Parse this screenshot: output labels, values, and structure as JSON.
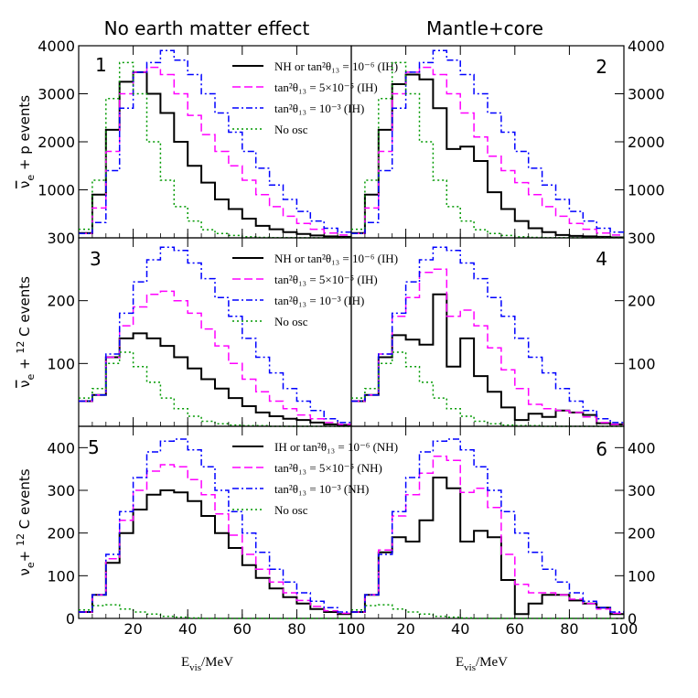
{
  "column_titles": [
    "No earth matter effect",
    "Mantle+core"
  ],
  "x_axis_label_main": "E",
  "x_axis_label_sub": "vis",
  "x_axis_label_unit": "/MeV",
  "row_y_labels": [
    {
      "prefix": "ν",
      "sub": "e",
      "rest": " + p events",
      "bar": true,
      "sup": ""
    },
    {
      "prefix": "ν",
      "sub": "e",
      "rest": " C events",
      "bar": true,
      "sup": "12",
      "plus": " + "
    },
    {
      "prefix": "ν",
      "sub": "e",
      "rest": " C events",
      "bar": false,
      "sup": "12",
      "plus": "+ "
    }
  ],
  "colors": {
    "black": "#000000",
    "magenta": "#ff00ff",
    "blue": "#0000ff",
    "green": "#009900"
  },
  "chart_data": [
    {
      "panel": 1,
      "type": "histogram",
      "xlim": [
        0,
        100
      ],
      "ylim": [
        0,
        4000
      ],
      "xticks": [
        20,
        40,
        60,
        80
      ],
      "yticks": [
        1000,
        2000,
        3000,
        4000
      ],
      "ytick_labels": [
        "1000",
        "2000",
        "3000",
        "4000"
      ],
      "bin_edges": [
        0,
        5,
        10,
        15,
        20,
        25,
        30,
        35,
        40,
        45,
        50,
        55,
        60,
        65,
        70,
        75,
        80,
        85,
        90,
        95,
        100
      ],
      "legend": [
        "NH or tan²θ₁₃ = 10⁻⁶ (IH)",
        "tan²θ₁₃ = 5×10⁻⁵ (IH)",
        "tan²θ₁₃ = 10⁻³ (IH)",
        "No osc"
      ],
      "series": [
        {
          "name": "NH or tan2theta13 = 1e-6 (IH)",
          "color": "black",
          "dash": "solid",
          "values": [
            100,
            900,
            2250,
            3250,
            3450,
            3000,
            2600,
            2000,
            1500,
            1150,
            800,
            600,
            400,
            250,
            180,
            120,
            80,
            50,
            30,
            20
          ]
        },
        {
          "name": "tan2theta13 = 5e-5 (IH)",
          "color": "magenta",
          "dash": "dashed",
          "values": [
            90,
            620,
            1800,
            3000,
            3450,
            3550,
            3400,
            3000,
            2550,
            2150,
            1800,
            1500,
            1200,
            900,
            650,
            450,
            300,
            180,
            100,
            60
          ]
        },
        {
          "name": "tan2theta13 = 1e-3 (IH)",
          "color": "blue",
          "dash": "dashdot",
          "values": [
            90,
            320,
            1400,
            2700,
            3450,
            3650,
            3900,
            3700,
            3400,
            3000,
            2600,
            2200,
            1800,
            1450,
            1100,
            800,
            550,
            350,
            200,
            120
          ]
        },
        {
          "name": "No osc",
          "color": "green",
          "dash": "dotted",
          "values": [
            180,
            1200,
            2900,
            3650,
            3000,
            2000,
            1200,
            650,
            350,
            170,
            90,
            50,
            20,
            10,
            5,
            3,
            2,
            1,
            1,
            1
          ]
        }
      ]
    },
    {
      "panel": 2,
      "type": "histogram",
      "xlim": [
        0,
        100
      ],
      "ylim": [
        0,
        4000
      ],
      "xticks": [
        20,
        40,
        60,
        80
      ],
      "yticks": [
        1000,
        2000,
        3000,
        4000
      ],
      "ytick_labels": [
        "1000",
        "2000",
        "3000",
        "4000"
      ],
      "bin_edges": [
        0,
        5,
        10,
        15,
        20,
        25,
        30,
        35,
        40,
        45,
        50,
        55,
        60,
        65,
        70,
        75,
        80,
        85,
        90,
        95,
        100
      ],
      "series": [
        {
          "name": "NH or tan2theta13 = 1e-6 (IH)",
          "color": "black",
          "dash": "solid",
          "values": [
            100,
            900,
            2250,
            3200,
            3400,
            3300,
            2700,
            1850,
            1900,
            1600,
            950,
            600,
            350,
            200,
            120,
            60,
            40,
            30,
            20,
            10
          ]
        },
        {
          "name": "tan2theta13 = 5e-5 (IH)",
          "color": "magenta",
          "dash": "dashed",
          "values": [
            90,
            620,
            1800,
            3000,
            3450,
            3550,
            3400,
            3000,
            2600,
            2100,
            1700,
            1400,
            1150,
            900,
            650,
            450,
            300,
            180,
            100,
            60
          ]
        },
        {
          "name": "tan2theta13 = 1e-3 (IH)",
          "color": "blue",
          "dash": "dashdot",
          "values": [
            90,
            320,
            1400,
            2700,
            3450,
            3650,
            3900,
            3700,
            3400,
            3000,
            2600,
            2200,
            1800,
            1450,
            1100,
            800,
            550,
            350,
            200,
            120
          ]
        },
        {
          "name": "No osc",
          "color": "green",
          "dash": "dotted",
          "values": [
            180,
            1200,
            2900,
            3650,
            3000,
            2000,
            1200,
            650,
            350,
            170,
            90,
            50,
            20,
            10,
            5,
            3,
            2,
            1,
            1,
            1
          ]
        }
      ]
    },
    {
      "panel": 3,
      "type": "histogram",
      "xlim": [
        0,
        100
      ],
      "ylim": [
        0,
        300
      ],
      "xticks": [
        20,
        40,
        60,
        80
      ],
      "yticks": [
        100,
        200,
        300
      ],
      "ytick_labels": [
        "100",
        "200",
        "300"
      ],
      "bin_edges": [
        0,
        5,
        10,
        15,
        20,
        25,
        30,
        35,
        40,
        45,
        50,
        55,
        60,
        65,
        70,
        75,
        80,
        85,
        90,
        95,
        100
      ],
      "legend": [
        "NH or tan²θ₁₃ = 10⁻⁶ (IH)",
        "tan²θ₁₃ = 5×10⁻⁵ (IH)",
        "tan²θ₁₃ = 10⁻³ (IH)",
        "No osc"
      ],
      "series": [
        {
          "name": "NH or tan2theta13 = 1e-6 (IH)",
          "color": "black",
          "dash": "solid",
          "values": [
            40,
            50,
            110,
            140,
            148,
            140,
            128,
            110,
            92,
            75,
            60,
            45,
            32,
            22,
            16,
            12,
            10,
            6,
            3,
            2
          ]
        },
        {
          "name": "tan2theta13 = 5e-5 (IH)",
          "color": "magenta",
          "dash": "dashed",
          "values": [
            40,
            50,
            110,
            160,
            190,
            210,
            215,
            200,
            180,
            155,
            128,
            100,
            75,
            55,
            40,
            28,
            18,
            12,
            6,
            3
          ]
        },
        {
          "name": "tan2theta13 = 1e-3 (IH)",
          "color": "blue",
          "dash": "dashdot",
          "values": [
            40,
            50,
            115,
            180,
            230,
            265,
            285,
            280,
            260,
            235,
            205,
            175,
            140,
            110,
            85,
            60,
            40,
            25,
            12,
            6
          ]
        },
        {
          "name": "No osc",
          "color": "green",
          "dash": "dotted",
          "values": [
            45,
            60,
            100,
            118,
            95,
            70,
            45,
            28,
            16,
            8,
            4,
            2,
            1,
            1,
            0,
            0,
            0,
            0,
            0,
            0
          ]
        }
      ]
    },
    {
      "panel": 4,
      "type": "histogram",
      "xlim": [
        0,
        100
      ],
      "ylim": [
        0,
        300
      ],
      "xticks": [
        20,
        40,
        60,
        80
      ],
      "yticks": [
        100,
        200,
        300
      ],
      "ytick_labels": [
        "100",
        "200",
        "300"
      ],
      "bin_edges": [
        0,
        5,
        10,
        15,
        20,
        25,
        30,
        35,
        40,
        45,
        50,
        55,
        60,
        65,
        70,
        75,
        80,
        85,
        90,
        95,
        100
      ],
      "series": [
        {
          "name": "NH or tan2theta13 = 1e-6 (IH)",
          "color": "black",
          "dash": "solid",
          "values": [
            40,
            50,
            110,
            145,
            138,
            130,
            210,
            95,
            140,
            80,
            55,
            30,
            10,
            20,
            15,
            25,
            22,
            18,
            5,
            3
          ]
        },
        {
          "name": "tan2theta13 = 5e-5 (IH)",
          "color": "magenta",
          "dash": "dashed",
          "values": [
            40,
            50,
            115,
            175,
            205,
            245,
            250,
            175,
            185,
            160,
            125,
            90,
            60,
            35,
            28,
            25,
            22,
            15,
            6,
            3
          ]
        },
        {
          "name": "tan2theta13 = 1e-3 (IH)",
          "color": "blue",
          "dash": "dashdot",
          "values": [
            40,
            50,
            115,
            180,
            230,
            265,
            285,
            280,
            260,
            235,
            205,
            175,
            140,
            110,
            85,
            60,
            40,
            25,
            12,
            6
          ]
        },
        {
          "name": "No osc",
          "color": "green",
          "dash": "dotted",
          "values": [
            45,
            60,
            100,
            118,
            95,
            70,
            45,
            28,
            16,
            8,
            4,
            2,
            1,
            1,
            0,
            0,
            0,
            0,
            0,
            0
          ]
        }
      ]
    },
    {
      "panel": 5,
      "type": "histogram",
      "xlim": [
        0,
        100
      ],
      "ylim": [
        0,
        450
      ],
      "xticks": [
        20,
        40,
        60,
        80,
        100
      ],
      "yticks": [
        0,
        100,
        200,
        300,
        400
      ],
      "ytick_labels": [
        "0",
        "100",
        "200",
        "300",
        "400"
      ],
      "bin_edges": [
        0,
        5,
        10,
        15,
        20,
        25,
        30,
        35,
        40,
        45,
        50,
        55,
        60,
        65,
        70,
        75,
        80,
        85,
        90,
        95,
        100
      ],
      "legend": [
        "IH or tan²θ₁₃ = 10⁻⁶ (NH)",
        "tan²θ₁₃ = 5×10⁻⁵ (NH)",
        "tan²θ₁₃ = 10⁻³ (NH)",
        "No osc"
      ],
      "series": [
        {
          "name": "IH or tan2theta13 = 1e-6 (NH)",
          "color": "black",
          "dash": "solid",
          "values": [
            15,
            55,
            130,
            200,
            255,
            290,
            300,
            295,
            275,
            240,
            200,
            165,
            125,
            95,
            70,
            50,
            35,
            22,
            15,
            10
          ]
        },
        {
          "name": "tan2theta13 = 5e-5 (NH)",
          "color": "magenta",
          "dash": "dashed",
          "values": [
            15,
            55,
            140,
            230,
            300,
            345,
            360,
            355,
            325,
            290,
            245,
            195,
            150,
            115,
            85,
            60,
            42,
            28,
            18,
            12
          ]
        },
        {
          "name": "tan2theta13 = 1e-3 (NH)",
          "color": "blue",
          "dash": "dashdot",
          "values": [
            15,
            55,
            150,
            250,
            330,
            390,
            415,
            420,
            395,
            355,
            300,
            250,
            200,
            155,
            115,
            85,
            60,
            40,
            25,
            15
          ]
        },
        {
          "name": "No osc",
          "color": "green",
          "dash": "dotted",
          "values": [
            20,
            30,
            32,
            22,
            15,
            10,
            5,
            3,
            1,
            0,
            0,
            0,
            0,
            0,
            0,
            0,
            0,
            0,
            0,
            0
          ]
        }
      ]
    },
    {
      "panel": 6,
      "type": "histogram",
      "xlim": [
        0,
        100
      ],
      "ylim": [
        0,
        450
      ],
      "xticks": [
        0,
        20,
        40,
        60,
        80,
        100
      ],
      "yticks": [
        0,
        100,
        200,
        300,
        400
      ],
      "ytick_labels": [
        "0",
        "100",
        "200",
        "300",
        "400"
      ],
      "bin_edges": [
        0,
        5,
        10,
        15,
        20,
        25,
        30,
        35,
        40,
        45,
        50,
        55,
        60,
        65,
        70,
        75,
        80,
        85,
        90,
        95,
        100
      ],
      "series": [
        {
          "name": "IH or tan2theta13 = 1e-6 (NH)",
          "color": "black",
          "dash": "solid",
          "values": [
            15,
            55,
            155,
            190,
            180,
            230,
            330,
            305,
            180,
            205,
            190,
            90,
            10,
            35,
            55,
            55,
            42,
            35,
            25,
            10
          ]
        },
        {
          "name": "tan2theta13 = 5e-5 (NH)",
          "color": "magenta",
          "dash": "dashed",
          "values": [
            15,
            55,
            160,
            240,
            290,
            340,
            380,
            370,
            295,
            305,
            260,
            150,
            80,
            60,
            60,
            55,
            45,
            35,
            22,
            12
          ]
        },
        {
          "name": "tan2theta13 = 1e-3 (NH)",
          "color": "blue",
          "dash": "dashdot",
          "values": [
            15,
            55,
            150,
            250,
            330,
            390,
            415,
            420,
            395,
            355,
            300,
            250,
            200,
            155,
            115,
            85,
            60,
            40,
            25,
            15
          ]
        },
        {
          "name": "No osc",
          "color": "green",
          "dash": "dotted",
          "values": [
            20,
            30,
            32,
            22,
            15,
            10,
            5,
            3,
            1,
            0,
            0,
            0,
            0,
            0,
            0,
            0,
            0,
            0,
            0,
            0
          ]
        }
      ]
    }
  ]
}
